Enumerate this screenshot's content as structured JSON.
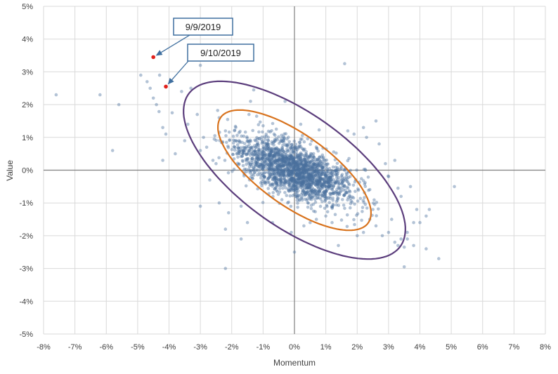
{
  "chart_data": {
    "type": "scatter",
    "xlabel": "Momentum",
    "ylabel": "Value",
    "xlim": [
      -8,
      8
    ],
    "ylim": [
      -5,
      5
    ],
    "x_ticks": [
      -8,
      -7,
      -6,
      -5,
      -4,
      -3,
      -2,
      -1,
      0,
      1,
      2,
      3,
      4,
      5,
      6,
      7,
      8
    ],
    "y_ticks": [
      -5,
      -4,
      -3,
      -2,
      -1,
      0,
      1,
      2,
      3,
      4,
      5
    ],
    "x_tick_labels": [
      "-8%",
      "-7%",
      "-6%",
      "-5%",
      "-4%",
      "-3%",
      "-2%",
      "-1%",
      "0%",
      "1%",
      "2%",
      "3%",
      "4%",
      "5%",
      "6%",
      "7%",
      "8%"
    ],
    "y_tick_labels": [
      "-5%",
      "-4%",
      "-3%",
      "-2%",
      "-1%",
      "0%",
      "1%",
      "2%",
      "3%",
      "4%",
      "5%"
    ],
    "grid": true,
    "colors": {
      "points": "#4a6f9e",
      "highlight": "#e0201c",
      "inner_ellipse": "#d8731e",
      "outer_ellipse": "#5b3d7c",
      "callout_border": "#3f6f9f",
      "grid": "#d9d9d9",
      "axis": "#808080"
    },
    "outlier_points": [
      [
        -7.6,
        2.3
      ],
      [
        -6.2,
        2.3
      ],
      [
        -5.8,
        0.6
      ],
      [
        -5.6,
        2.0
      ],
      [
        -4.9,
        2.9
      ],
      [
        -4.7,
        2.7
      ],
      [
        -4.6,
        2.5
      ],
      [
        -4.5,
        2.2
      ],
      [
        -4.4,
        2.0
      ],
      [
        -4.3,
        2.9
      ],
      [
        -4.2,
        1.3
      ],
      [
        -4.1,
        1.1
      ],
      [
        -4.2,
        0.3
      ],
      [
        -3.9,
        1.75
      ],
      [
        -3.8,
        0.5
      ],
      [
        -3.6,
        2.4
      ],
      [
        -3.5,
        0.9
      ],
      [
        -3.4,
        1.4
      ],
      [
        -3.3,
        2.5
      ],
      [
        -3.0,
        3.2
      ],
      [
        -3.1,
        1.7
      ],
      [
        -2.9,
        1.0
      ],
      [
        -2.8,
        0.7
      ],
      [
        -3.0,
        0.6
      ],
      [
        -2.6,
        0.3
      ],
      [
        -2.5,
        0.2
      ],
      [
        -2.4,
        1.6
      ],
      [
        -2.2,
        1.2
      ],
      [
        -3.0,
        -1.1
      ],
      [
        -2.4,
        -1.0
      ],
      [
        -2.1,
        -1.3
      ],
      [
        -2.2,
        -1.8
      ],
      [
        -1.7,
        -2.1
      ],
      [
        -2.2,
        -3.0
      ],
      [
        -1.3,
        2.45
      ],
      [
        -1.4,
        2.1
      ],
      [
        -1.45,
        1.7
      ],
      [
        -1.9,
        0.9
      ],
      [
        -1.8,
        0.6
      ],
      [
        -0.3,
        2.1
      ],
      [
        0.2,
        1.4
      ],
      [
        -0.1,
        -1.9
      ],
      [
        0.0,
        -2.5
      ],
      [
        0.5,
        -1.6
      ],
      [
        0.7,
        -1.5
      ],
      [
        1.0,
        -1.4
      ],
      [
        1.6,
        3.25
      ],
      [
        1.4,
        -2.3
      ],
      [
        1.7,
        1.2
      ],
      [
        1.9,
        1.1
      ],
      [
        2.2,
        1.3
      ],
      [
        2.3,
        1.0
      ],
      [
        2.6,
        1.5
      ],
      [
        2.7,
        0.8
      ],
      [
        2.5,
        -1.2
      ],
      [
        2.4,
        -1.5
      ],
      [
        2.6,
        -1.7
      ],
      [
        2.8,
        -2.0
      ],
      [
        2.0,
        -2.0
      ],
      [
        3.0,
        -1.9
      ],
      [
        3.2,
        -2.2
      ],
      [
        3.3,
        -2.3
      ],
      [
        3.4,
        -2.1
      ],
      [
        3.5,
        -2.35
      ],
      [
        3.6,
        -2.1
      ],
      [
        3.5,
        -2.95
      ],
      [
        3.9,
        -1.2
      ],
      [
        3.8,
        -1.6
      ],
      [
        4.0,
        -1.6
      ],
      [
        3.6,
        -1.9
      ],
      [
        3.8,
        -2.3
      ],
      [
        4.3,
        -1.2
      ],
      [
        4.2,
        -2.4
      ],
      [
        4.6,
        -2.7
      ],
      [
        4.2,
        -1.4
      ],
      [
        5.1,
        -0.5
      ],
      [
        3.0,
        -0.2
      ],
      [
        3.3,
        -0.55
      ],
      [
        3.2,
        0.3
      ],
      [
        3.4,
        -0.8
      ],
      [
        2.9,
        0.2
      ],
      [
        3.1,
        -1.5
      ],
      [
        3.7,
        -0.5
      ],
      [
        2.2,
        -1.9
      ],
      [
        -1.5,
        -1.6
      ],
      [
        -1.7,
        -1.1
      ],
      [
        -2.7,
        -0.3
      ],
      [
        -0.7,
        -1.6
      ],
      [
        0.3,
        -1.7
      ],
      [
        1.2,
        -1.6
      ]
    ],
    "highlighted_points": [
      {
        "label": "9/9/2019",
        "x": -4.5,
        "y": 3.45
      },
      {
        "label": "9/10/2019",
        "x": -4.1,
        "y": 2.55
      }
    ],
    "ellipses": [
      {
        "name": "inner",
        "cx": 0.0,
        "cy": 0.0,
        "rx": 2.85,
        "ry": 1.1,
        "angle_deg": -34
      },
      {
        "name": "outer",
        "cx": 0.0,
        "cy": 0.0,
        "rx": 4.1,
        "ry": 1.75,
        "angle_deg": -34
      }
    ]
  }
}
